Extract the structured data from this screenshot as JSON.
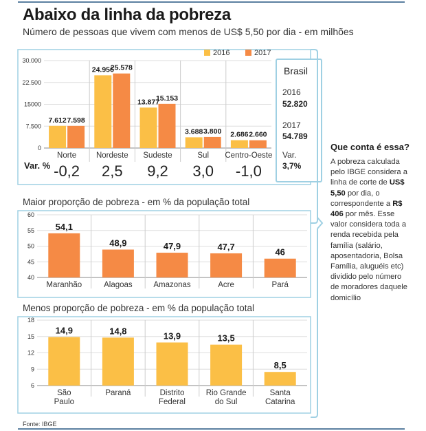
{
  "title": "Abaixo da linha da pobreza",
  "subtitle": "Número de pessoas que vivem com menos de US$ 5,50 por dia - em milhões",
  "var_label": "Var. %",
  "brasil": {
    "title": "Brasil",
    "y1_label": "2016",
    "y1_value": "52.820",
    "y2_label": "2017",
    "y2_value": "54.789",
    "var_label": "Var.",
    "var_value": "3,7%"
  },
  "sidebar": {
    "title": "Que conta é essa?",
    "text_parts": [
      {
        "t": "A pobreza calculada pelo IBGE considera a linha de corte de ",
        "b": false
      },
      {
        "t": "US$ 5,50",
        "b": true
      },
      {
        "t": " por dia, o correspondente a ",
        "b": false
      },
      {
        "t": "R$ 406",
        "b": true
      },
      {
        "t": " por mês. Esse valor considera toda a renda recebida pela família (salário, aposentadoria, Bolsa Família, aluguéis etc) dividido pelo número de moradores daquele domicílio",
        "b": false
      }
    ]
  },
  "section2_title": "Maior proporção de pobreza - em % da população total",
  "section3_title": "Menos proporção de pobreza - em % da população total",
  "source": "Fonte: IBGE",
  "colors": {
    "c2016": "#fbbf46",
    "c2017": "#f58a45",
    "orange": "#f58a45",
    "yellow": "#fbbf46",
    "accent": "#9fd0e3"
  },
  "chart_data": [
    {
      "type": "bar",
      "categories": [
        "Norte",
        "Nordeste",
        "Sudeste",
        "Sul",
        "Centro-Oeste"
      ],
      "series": [
        {
          "name": "2016",
          "values": [
            7612,
            24956,
            13877,
            3688,
            2686
          ],
          "labels": [
            "7.612",
            "24.956",
            "13.877",
            "3.688",
            "2.686"
          ]
        },
        {
          "name": "2017",
          "values": [
            7598,
            25578,
            15153,
            3800,
            2660
          ],
          "labels": [
            "7.598",
            "25.578",
            "15.153",
            "3.800",
            "2.660"
          ]
        }
      ],
      "variation": [
        "-0,2",
        "2,5",
        "9,2",
        "3,0",
        "-1,0"
      ],
      "yticks": [
        0,
        7500,
        15000,
        22500,
        30000
      ],
      "ytick_labels": [
        "0",
        "7.500",
        "15000",
        "22.500",
        "30.000"
      ],
      "ylim": [
        0,
        30000
      ],
      "legend_position": "top-right"
    },
    {
      "type": "bar",
      "categories": [
        "Maranhão",
        "Alagoas",
        "Amazonas",
        "Acre",
        "Pará"
      ],
      "values": [
        54.1,
        48.9,
        47.9,
        47.7,
        46
      ],
      "labels": [
        "54,1",
        "48,9",
        "47,9",
        "47,7",
        "46"
      ],
      "yticks": [
        40,
        45,
        50,
        55,
        60
      ],
      "ylim": [
        40,
        60
      ]
    },
    {
      "type": "bar",
      "categories": [
        "São Paulo",
        "Paraná",
        "Distrito Federal",
        "Rio Grande do Sul",
        "Santa Catarina"
      ],
      "values": [
        14.9,
        14.8,
        13.9,
        13.5,
        8.5
      ],
      "labels": [
        "14,9",
        "14,8",
        "13,9",
        "13,5",
        "8,5"
      ],
      "yticks": [
        6,
        9,
        12,
        15,
        18
      ],
      "ylim": [
        6,
        18
      ]
    }
  ]
}
